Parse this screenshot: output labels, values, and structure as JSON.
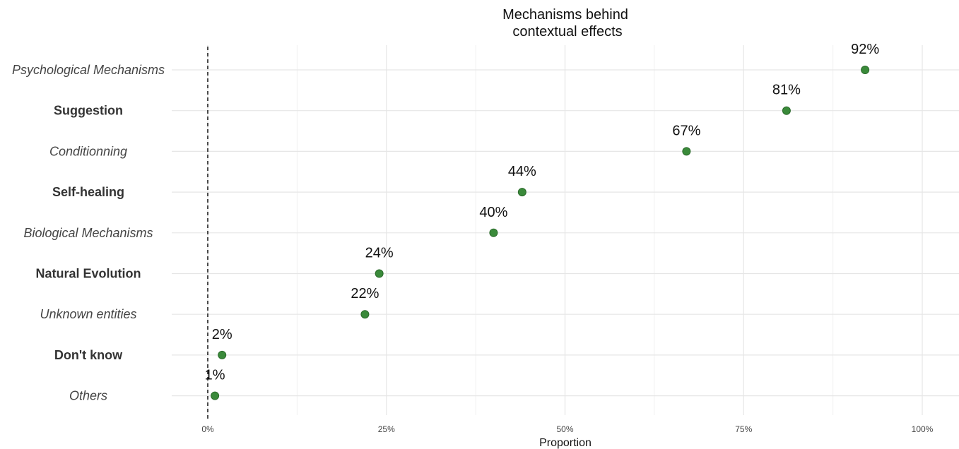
{
  "chart_data": {
    "type": "scatter",
    "title": "Mechanisms behind\ncontextual effects",
    "title_lines": [
      "Mechanisms behind",
      "contextual effects"
    ],
    "xlabel": "Proportion",
    "ylabel": "",
    "xlim": [
      0,
      1
    ],
    "x_ticks": [
      0,
      0.25,
      0.5,
      0.75,
      1
    ],
    "x_tick_labels": [
      "0%",
      "25%",
      "50%",
      "75%",
      "100%"
    ],
    "grid": true,
    "reference_line": {
      "x": 0,
      "style": "dashed"
    },
    "point_color": "#3a8a3a",
    "categories": [
      {
        "label": "Psychological Mechanisms",
        "value": 0.92,
        "value_label": "92%",
        "style": "italic"
      },
      {
        "label": "Suggestion",
        "value": 0.81,
        "value_label": "81%",
        "style": "bold"
      },
      {
        "label": "Conditionning",
        "value": 0.67,
        "value_label": "67%",
        "style": "italic"
      },
      {
        "label": "Self-healing",
        "value": 0.44,
        "value_label": "44%",
        "style": "bold"
      },
      {
        "label": "Biological Mechanisms",
        "value": 0.4,
        "value_label": "40%",
        "style": "italic"
      },
      {
        "label": "Natural Evolution",
        "value": 0.24,
        "value_label": "24%",
        "style": "bold"
      },
      {
        "label": "Unknown entities",
        "value": 0.22,
        "value_label": "22%",
        "style": "italic"
      },
      {
        "label": "Don't know",
        "value": 0.02,
        "value_label": "2%",
        "style": "bold"
      },
      {
        "label": "Others",
        "value": 0.01,
        "value_label": "1%",
        "style": "italic"
      }
    ]
  }
}
